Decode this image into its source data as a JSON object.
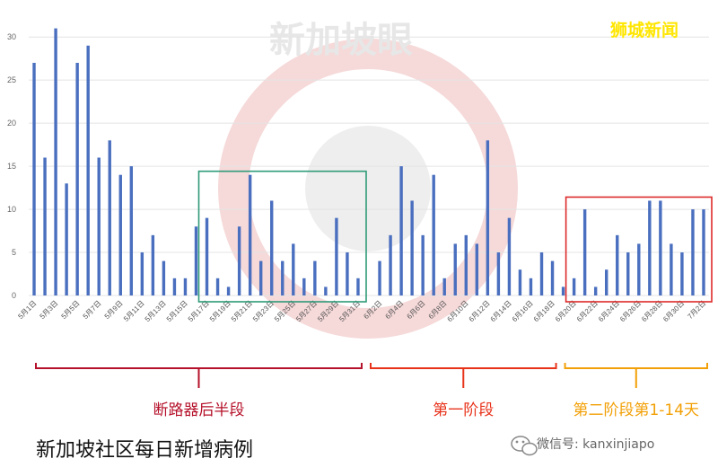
{
  "chart_data": {
    "type": "bar",
    "title": "新加坡社区每日新增病例",
    "categories": [
      "5月1日",
      "5月2日",
      "5月3日",
      "5月4日",
      "5月5日",
      "5月6日",
      "5月7日",
      "5月8日",
      "5月9日",
      "5月10日",
      "5月11日",
      "5月12日",
      "5月13日",
      "5月14日",
      "5月15日",
      "5月16日",
      "5月17日",
      "5月18日",
      "5月19日",
      "5月20日",
      "5月21日",
      "5月22日",
      "5月23日",
      "5月24日",
      "5月25日",
      "5月26日",
      "5月27日",
      "5月28日",
      "5月29日",
      "5月30日",
      "5月31日",
      "6月1日",
      "6月2日",
      "6月3日",
      "6月4日",
      "6月5日",
      "6月6日",
      "6月7日",
      "6月8日",
      "6月9日",
      "6月10日",
      "6月11日",
      "6月12日",
      "6月13日",
      "6月14日",
      "6月15日",
      "6月16日",
      "6月17日",
      "6月18日",
      "6月19日",
      "6月20日",
      "6月21日",
      "6月22日",
      "6月23日",
      "6月24日",
      "6月25日",
      "6月26日",
      "6月27日",
      "6月28日",
      "6月29日",
      "6月30日",
      "7月1日",
      "7月2日"
    ],
    "values": [
      27,
      16,
      31,
      13,
      27,
      29,
      16,
      18,
      14,
      15,
      5,
      7,
      4,
      2,
      2,
      8,
      9,
      2,
      1,
      8,
      14,
      4,
      11,
      4,
      6,
      2,
      4,
      1,
      9,
      5,
      2,
      0,
      4,
      7,
      15,
      11,
      7,
      14,
      2,
      6,
      7,
      6,
      18,
      5,
      9,
      3,
      2,
      5,
      4,
      1,
      2,
      10,
      1,
      3,
      7,
      5,
      6,
      11,
      11,
      6,
      5,
      10,
      10
    ],
    "x_tick_labels": [
      "5月1日",
      "5月3日",
      "5月5日",
      "5月7日",
      "5月9日",
      "5月11日",
      "5月13日",
      "5月15日",
      "5月17日",
      "5月19日",
      "5月21日",
      "5月23日",
      "5月25日",
      "5月27日",
      "5月29日",
      "5月31日",
      "6月2日",
      "6月4日",
      "6月6日",
      "6月8日",
      "6月10日",
      "6月12日",
      "6月14日",
      "6月16日",
      "6月18日",
      "6月20日",
      "6月22日",
      "6月24日",
      "6月26日",
      "6月28日",
      "6月30日",
      "7月2日"
    ],
    "y_ticks": [
      0,
      5,
      10,
      15,
      20,
      25,
      30
    ],
    "ylim": [
      0,
      32
    ],
    "grid": true,
    "bar_color": "#4a6fbf",
    "highlights": [
      {
        "from": "5月17日",
        "to": "5月31日",
        "color": "#2e9a78"
      },
      {
        "from": "6月20日",
        "to": "7月2日",
        "color": "#dd2a2a"
      }
    ],
    "phases": [
      {
        "label": "断路器后半段",
        "from": "5月1日",
        "to": "5月31日",
        "color": "#b5112a"
      },
      {
        "label": "第一阶段",
        "from": "6月1日",
        "to": "6月18日",
        "color": "#e8331b"
      },
      {
        "label": "第二阶段第1-14天",
        "from": "6月19日",
        "to": "7月2日",
        "color": "#f2a007"
      }
    ]
  },
  "brand": "狮城新闻",
  "watermark": "新加坡眼",
  "wechat_label": "微信号: kanxinjiapo",
  "icons": {
    "wechat": "wechat-icon"
  }
}
